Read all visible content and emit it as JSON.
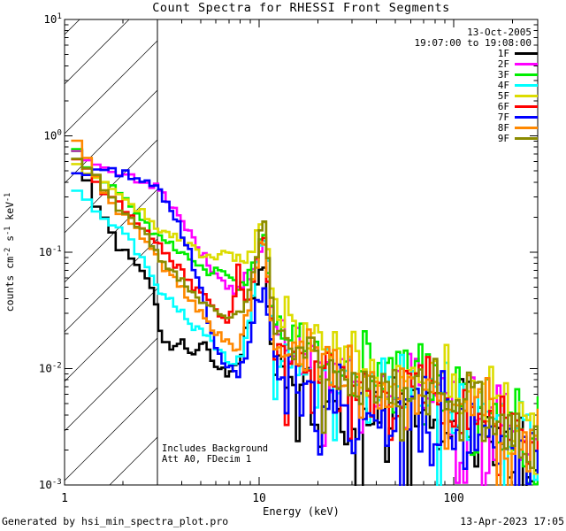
{
  "header": {
    "title": "Count Spectra for RHESSI Front Segments"
  },
  "legend": {
    "date": "13-Oct-2005",
    "time_range": "19:07:00 to 19:08:00",
    "entries": [
      {
        "label": "1F",
        "color": "#000000"
      },
      {
        "label": "2F",
        "color": "#ff00ff"
      },
      {
        "label": "3F",
        "color": "#00ee00"
      },
      {
        "label": "4F",
        "color": "#00ffff"
      },
      {
        "label": "5F",
        "color": "#dcdc00"
      },
      {
        "label": "6F",
        "color": "#ff0000"
      },
      {
        "label": "7F",
        "color": "#0000ff"
      },
      {
        "label": "8F",
        "color": "#ff8800"
      },
      {
        "label": "9F",
        "color": "#8b8b00"
      }
    ]
  },
  "annotation": {
    "line1": "Includes Background",
    "line2": "Att A0, FDecim 1"
  },
  "footer": {
    "left": "Generated by hsi_min_spectra_plot.pro",
    "right": "13-Apr-2023 17:05"
  },
  "chart_data": {
    "type": "line",
    "subtype": "step-histogram-spectra",
    "title": "Count Spectra for RHESSI Front Segments",
    "xlabel": "Energy (keV)",
    "ylabel": "counts cm^-2 s^-1 keV^-1",
    "ylabel_parts": [
      {
        "t": "counts cm"
      },
      {
        "t": "-2",
        "sup": true
      },
      {
        "t": " s"
      },
      {
        "t": "-1",
        "sup": true
      },
      {
        "t": " keV"
      },
      {
        "t": "-1",
        "sup": true
      }
    ],
    "xscale": "log",
    "yscale": "log",
    "xlim": [
      1,
      270
    ],
    "ylim": [
      0.001,
      10
    ],
    "x_major_ticks": [
      1,
      10,
      100
    ],
    "x_major_labels": [
      "1",
      "10",
      "100"
    ],
    "y_major_exponents": [
      1,
      0,
      -1,
      -2,
      -3
    ],
    "hatch_region": {
      "xmin": 1,
      "xmax": 3.0
    },
    "legend_position": "top-right-inside",
    "grid": false,
    "series": [
      {
        "name": "1F",
        "color": "#000000",
        "seed": 101,
        "dip_prob": 0.12,
        "anchors": [
          [
            1.08,
            0.93
          ],
          [
            1.25,
            0.55
          ],
          [
            1.45,
            0.25
          ],
          [
            1.7,
            0.16
          ],
          [
            2.0,
            0.1
          ],
          [
            2.4,
            0.077
          ],
          [
            2.8,
            0.05
          ],
          [
            3.05,
            0.024
          ],
          [
            3.5,
            0.014
          ],
          [
            4.0,
            0.02
          ],
          [
            4.5,
            0.012
          ],
          [
            5.2,
            0.018
          ],
          [
            6.0,
            0.011
          ],
          [
            7.0,
            0.009
          ],
          [
            8.0,
            0.012
          ],
          [
            9.0,
            0.03
          ],
          [
            10.0,
            0.06
          ],
          [
            10.5,
            0.07
          ],
          [
            11.2,
            0.035
          ],
          [
            12.0,
            0.011
          ],
          [
            14,
            0.009
          ],
          [
            20,
            0.0065
          ],
          [
            26,
            0.005
          ],
          [
            31,
            0.004
          ],
          [
            32.2,
            0.0008
          ],
          [
            34,
            0.0042
          ],
          [
            45,
            0.0038
          ],
          [
            70,
            0.0045
          ],
          [
            100,
            0.0034
          ],
          [
            150,
            0.0026
          ],
          [
            200,
            0.002
          ],
          [
            270,
            0.0013
          ]
        ]
      },
      {
        "name": "2F",
        "color": "#ff00ff",
        "seed": 202,
        "dip_prob": 0.07,
        "anchors": [
          [
            1.08,
            0.73
          ],
          [
            1.3,
            0.6
          ],
          [
            1.6,
            0.52
          ],
          [
            2.0,
            0.47
          ],
          [
            2.5,
            0.42
          ],
          [
            3.0,
            0.38
          ],
          [
            3.5,
            0.27
          ],
          [
            4.2,
            0.17
          ],
          [
            5.0,
            0.105
          ],
          [
            6.0,
            0.062
          ],
          [
            6.8,
            0.052
          ],
          [
            7.6,
            0.048
          ],
          [
            8.4,
            0.055
          ],
          [
            9.2,
            0.07
          ],
          [
            10.0,
            0.1
          ],
          [
            10.5,
            0.13
          ],
          [
            11.2,
            0.055
          ],
          [
            12.0,
            0.022
          ],
          [
            14,
            0.015
          ],
          [
            20,
            0.0105
          ],
          [
            30,
            0.0075
          ],
          [
            45,
            0.006
          ],
          [
            70,
            0.0065
          ],
          [
            100,
            0.005
          ],
          [
            150,
            0.0036
          ],
          [
            200,
            0.0028
          ],
          [
            270,
            0.002
          ]
        ]
      },
      {
        "name": "3F",
        "color": "#00ee00",
        "seed": 303,
        "dip_prob": 0.04,
        "anchors": [
          [
            1.08,
            0.87
          ],
          [
            1.3,
            0.55
          ],
          [
            1.6,
            0.42
          ],
          [
            2.0,
            0.3
          ],
          [
            2.5,
            0.19
          ],
          [
            3.0,
            0.137
          ],
          [
            3.6,
            0.115
          ],
          [
            4.3,
            0.09
          ],
          [
            5.0,
            0.078
          ],
          [
            5.7,
            0.062
          ],
          [
            6.5,
            0.075
          ],
          [
            7.2,
            0.058
          ],
          [
            8.2,
            0.052
          ],
          [
            9.2,
            0.07
          ],
          [
            10.0,
            0.13
          ],
          [
            10.5,
            0.155
          ],
          [
            11.2,
            0.065
          ],
          [
            12.0,
            0.027
          ],
          [
            14,
            0.019
          ],
          [
            20,
            0.0135
          ],
          [
            30,
            0.0095
          ],
          [
            45,
            0.0078
          ],
          [
            70,
            0.008
          ],
          [
            100,
            0.006
          ],
          [
            150,
            0.0042
          ],
          [
            200,
            0.0032
          ],
          [
            270,
            0.0023
          ]
        ]
      },
      {
        "name": "4F",
        "color": "#00ffff",
        "seed": 404,
        "dip_prob": 0.05,
        "anchors": [
          [
            1.08,
            0.36
          ],
          [
            1.3,
            0.28
          ],
          [
            1.6,
            0.2
          ],
          [
            2.0,
            0.15
          ],
          [
            2.5,
            0.09
          ],
          [
            3.0,
            0.05
          ],
          [
            3.6,
            0.036
          ],
          [
            4.3,
            0.027
          ],
          [
            5.2,
            0.02
          ],
          [
            6.2,
            0.014
          ],
          [
            7.2,
            0.011
          ],
          [
            8.2,
            0.013
          ],
          [
            9.2,
            0.035
          ],
          [
            10.0,
            0.11
          ],
          [
            10.5,
            0.15
          ],
          [
            11.0,
            0.1
          ],
          [
            11.6,
            0.028
          ],
          [
            12.0,
            0.013
          ],
          [
            12.25,
            0.002
          ],
          [
            12.6,
            0.012
          ],
          [
            14,
            0.012
          ],
          [
            20,
            0.009
          ],
          [
            30,
            0.0068
          ],
          [
            45,
            0.0058
          ],
          [
            70,
            0.0062
          ],
          [
            100,
            0.0048
          ],
          [
            150,
            0.0035
          ],
          [
            200,
            0.0027
          ],
          [
            270,
            0.002
          ]
        ]
      },
      {
        "name": "5F",
        "color": "#dcdc00",
        "seed": 505,
        "dip_prob": 0.02,
        "anchors": [
          [
            1.08,
            0.62
          ],
          [
            1.3,
            0.48
          ],
          [
            1.6,
            0.38
          ],
          [
            2.0,
            0.3
          ],
          [
            2.5,
            0.22
          ],
          [
            3.0,
            0.17
          ],
          [
            3.6,
            0.14
          ],
          [
            4.3,
            0.115
          ],
          [
            5.0,
            0.1
          ],
          [
            5.8,
            0.092
          ],
          [
            6.6,
            0.1
          ],
          [
            7.4,
            0.088
          ],
          [
            8.4,
            0.092
          ],
          [
            9.4,
            0.12
          ],
          [
            10.0,
            0.17
          ],
          [
            10.4,
            0.2
          ],
          [
            11.0,
            0.13
          ],
          [
            11.6,
            0.042
          ],
          [
            12.2,
            0.032
          ],
          [
            13,
            0.028
          ],
          [
            15,
            0.025
          ],
          [
            20,
            0.018
          ],
          [
            30,
            0.0115
          ],
          [
            45,
            0.0092
          ],
          [
            60,
            0.009
          ],
          [
            80,
            0.0102
          ],
          [
            100,
            0.008
          ],
          [
            150,
            0.0055
          ],
          [
            200,
            0.0042
          ],
          [
            270,
            0.0032
          ]
        ]
      },
      {
        "name": "6F",
        "color": "#ff0000",
        "seed": 606,
        "dip_prob": 0.05,
        "anchors": [
          [
            1.08,
            0.77
          ],
          [
            1.3,
            0.5
          ],
          [
            1.6,
            0.33
          ],
          [
            2.0,
            0.24
          ],
          [
            2.5,
            0.16
          ],
          [
            3.0,
            0.12
          ],
          [
            3.6,
            0.082
          ],
          [
            4.3,
            0.058
          ],
          [
            5.0,
            0.044
          ],
          [
            6.0,
            0.032
          ],
          [
            7.0,
            0.026
          ],
          [
            7.7,
            0.05
          ],
          [
            7.95,
            0.115
          ],
          [
            8.2,
            0.038
          ],
          [
            8.8,
            0.034
          ],
          [
            9.4,
            0.06
          ],
          [
            10.0,
            0.11
          ],
          [
            10.5,
            0.125
          ],
          [
            11.2,
            0.048
          ],
          [
            12.0,
            0.019
          ],
          [
            14,
            0.014
          ],
          [
            20,
            0.0098
          ],
          [
            30,
            0.0072
          ],
          [
            45,
            0.006
          ],
          [
            70,
            0.0066
          ],
          [
            100,
            0.005
          ],
          [
            150,
            0.0038
          ],
          [
            200,
            0.0029
          ],
          [
            270,
            0.0021
          ]
        ]
      },
      {
        "name": "7F",
        "color": "#0000ff",
        "seed": 707,
        "dip_prob": 0.13,
        "anchors": [
          [
            1.08,
            0.44
          ],
          [
            1.3,
            0.5
          ],
          [
            1.6,
            0.52
          ],
          [
            2.0,
            0.48
          ],
          [
            2.5,
            0.42
          ],
          [
            3.0,
            0.36
          ],
          [
            3.4,
            0.26
          ],
          [
            3.9,
            0.16
          ],
          [
            4.4,
            0.1
          ],
          [
            5.0,
            0.05
          ],
          [
            5.6,
            0.022
          ],
          [
            6.3,
            0.013
          ],
          [
            7.0,
            0.01
          ],
          [
            7.7,
            0.009
          ],
          [
            8.5,
            0.012
          ],
          [
            9.3,
            0.022
          ],
          [
            10.0,
            0.042
          ],
          [
            10.5,
            0.05
          ],
          [
            11.2,
            0.026
          ],
          [
            12.0,
            0.011
          ],
          [
            14,
            0.0085
          ],
          [
            20,
            0.0062
          ],
          [
            30,
            0.0048
          ],
          [
            45,
            0.0042
          ],
          [
            70,
            0.0047
          ],
          [
            100,
            0.0038
          ],
          [
            150,
            0.0028
          ],
          [
            200,
            0.0021
          ],
          [
            270,
            0.0015
          ]
        ]
      },
      {
        "name": "8F",
        "color": "#ff8800",
        "seed": 808,
        "dip_prob": 0.05,
        "anchors": [
          [
            1.08,
            1.05
          ],
          [
            1.25,
            0.8
          ],
          [
            1.45,
            0.42
          ],
          [
            1.8,
            0.24
          ],
          [
            2.2,
            0.17
          ],
          [
            2.7,
            0.11
          ],
          [
            3.0,
            0.088
          ],
          [
            3.6,
            0.06
          ],
          [
            4.3,
            0.042
          ],
          [
            5.0,
            0.03
          ],
          [
            6.0,
            0.022
          ],
          [
            7.0,
            0.016
          ],
          [
            7.6,
            0.013
          ],
          [
            8.0,
            0.018
          ],
          [
            9.0,
            0.035
          ],
          [
            10.0,
            0.1
          ],
          [
            10.4,
            0.135
          ],
          [
            11.0,
            0.075
          ],
          [
            11.6,
            0.024
          ],
          [
            12.5,
            0.017
          ],
          [
            14,
            0.0135
          ],
          [
            20,
            0.0098
          ],
          [
            30,
            0.0076
          ],
          [
            45,
            0.0064
          ],
          [
            70,
            0.0069
          ],
          [
            100,
            0.0052
          ],
          [
            150,
            0.0038
          ],
          [
            200,
            0.0029
          ],
          [
            270,
            0.002
          ]
        ]
      },
      {
        "name": "9F",
        "color": "#8b8b00",
        "seed": 909,
        "dip_prob": 0.04,
        "anchors": [
          [
            1.08,
            0.7
          ],
          [
            1.25,
            0.57
          ],
          [
            1.45,
            0.46
          ],
          [
            1.7,
            0.3
          ],
          [
            2.0,
            0.23
          ],
          [
            2.5,
            0.155
          ],
          [
            3.0,
            0.097
          ],
          [
            3.6,
            0.068
          ],
          [
            4.3,
            0.05
          ],
          [
            5.0,
            0.04
          ],
          [
            6.0,
            0.032
          ],
          [
            7.0,
            0.027
          ],
          [
            8.0,
            0.03
          ],
          [
            9.0,
            0.05
          ],
          [
            10.0,
            0.14
          ],
          [
            10.6,
            0.175
          ],
          [
            11.2,
            0.075
          ],
          [
            12.0,
            0.024
          ],
          [
            14,
            0.0165
          ],
          [
            20,
            0.0115
          ],
          [
            30,
            0.0082
          ],
          [
            45,
            0.0066
          ],
          [
            70,
            0.007
          ],
          [
            100,
            0.0054
          ],
          [
            150,
            0.004
          ],
          [
            200,
            0.003
          ],
          [
            270,
            0.0022
          ]
        ]
      }
    ]
  }
}
